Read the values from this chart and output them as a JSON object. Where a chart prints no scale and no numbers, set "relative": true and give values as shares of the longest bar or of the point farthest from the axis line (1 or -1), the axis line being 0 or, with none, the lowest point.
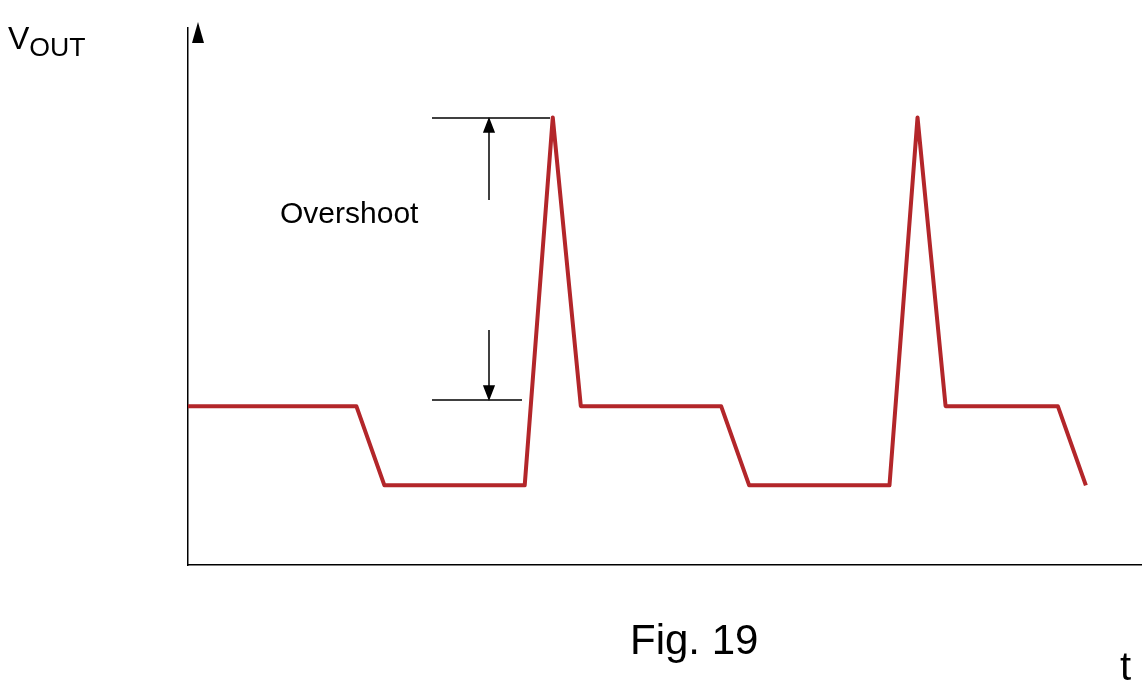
{
  "chart_data": {
    "type": "line",
    "relative": true,
    "ylabel": "V$_{OUT}$",
    "xlabel": "t",
    "color": "#b3262a",
    "marker": "none",
    "line_style": "solid",
    "grid": false,
    "legend": false,
    "categories": [
      null,
      null,
      null,
      null,
      null,
      null,
      null,
      null,
      null,
      null,
      null,
      null,
      null,
      null,
      null,
      null,
      null,
      null,
      null,
      null,
      null,
      null,
      null,
      null,
      null,
      null,
      null,
      null,
      null,
      null,
      null,
      null,
      null,
      null,
      null
    ],
    "values": [
      0.355,
      0.355,
      0.355,
      0.355,
      0.355,
      0.355,
      0.355,
      0.178,
      0.178,
      0.178,
      0.178,
      0.178,
      0.178,
      1,
      0.355,
      0.355,
      0.355,
      0.355,
      0.355,
      0.355,
      0.178,
      0.178,
      0.178,
      0.178,
      0.178,
      0.178,
      1,
      0.355,
      0.355,
      0.355,
      0.355,
      0.355,
      0.178,
      null,
      null
    ],
    "annotations": [
      "Overshoot",
      "Fig. 19"
    ]
  }
}
